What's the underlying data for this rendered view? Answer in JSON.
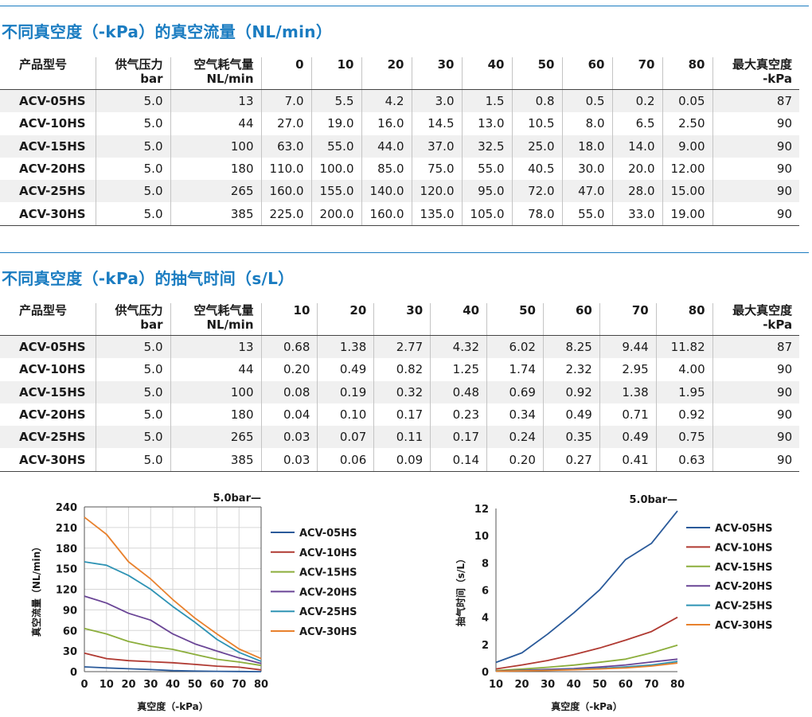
{
  "flow_section": {
    "title": "不同真空度（-kPa）的真空流量（NL/min）",
    "headers": [
      "产品型号",
      "供气压力\nbar",
      "空气耗气量\nNL/min",
      "0",
      "10",
      "20",
      "30",
      "40",
      "50",
      "60",
      "70",
      "80",
      "最大真空度\n-kPa"
    ],
    "rows": [
      [
        "ACV-05HS",
        "5.0",
        "13",
        "7.0",
        "5.5",
        "4.2",
        "3.0",
        "1.5",
        "0.8",
        "0.5",
        "0.2",
        "0.05",
        "87"
      ],
      [
        "ACV-10HS",
        "5.0",
        "44",
        "27.0",
        "19.0",
        "16.0",
        "14.5",
        "13.0",
        "10.5",
        "8.0",
        "6.5",
        "2.50",
        "90"
      ],
      [
        "ACV-15HS",
        "5.0",
        "100",
        "63.0",
        "55.0",
        "44.0",
        "37.0",
        "32.5",
        "25.0",
        "18.0",
        "14.0",
        "9.00",
        "90"
      ],
      [
        "ACV-20HS",
        "5.0",
        "180",
        "110.0",
        "100.0",
        "85.0",
        "75.0",
        "55.0",
        "40.5",
        "30.0",
        "20.0",
        "12.00",
        "90"
      ],
      [
        "ACV-25HS",
        "5.0",
        "265",
        "160.0",
        "155.0",
        "140.0",
        "120.0",
        "95.0",
        "72.0",
        "47.0",
        "28.0",
        "15.00",
        "90"
      ],
      [
        "ACV-30HS",
        "5.0",
        "385",
        "225.0",
        "200.0",
        "160.0",
        "135.0",
        "105.0",
        "78.0",
        "55.0",
        "33.0",
        "19.00",
        "90"
      ]
    ]
  },
  "time_section": {
    "title": "不同真空度（-kPa）的抽气时间（s/L）",
    "headers": [
      "产品型号",
      "供气压力\nbar",
      "空气耗气量\nNL/min",
      "10",
      "20",
      "30",
      "40",
      "50",
      "60",
      "70",
      "80",
      "最大真空度\n-kPa"
    ],
    "rows": [
      [
        "ACV-05HS",
        "5.0",
        "13",
        "0.68",
        "1.38",
        "2.77",
        "4.32",
        "6.02",
        "8.25",
        "9.44",
        "11.82",
        "87"
      ],
      [
        "ACV-10HS",
        "5.0",
        "44",
        "0.20",
        "0.49",
        "0.82",
        "1.25",
        "1.74",
        "2.32",
        "2.95",
        "4.00",
        "90"
      ],
      [
        "ACV-15HS",
        "5.0",
        "100",
        "0.08",
        "0.19",
        "0.32",
        "0.48",
        "0.69",
        "0.92",
        "1.38",
        "1.95",
        "90"
      ],
      [
        "ACV-20HS",
        "5.0",
        "180",
        "0.04",
        "0.10",
        "0.17",
        "0.23",
        "0.34",
        "0.49",
        "0.71",
        "0.92",
        "90"
      ],
      [
        "ACV-25HS",
        "5.0",
        "265",
        "0.03",
        "0.07",
        "0.11",
        "0.17",
        "0.24",
        "0.35",
        "0.49",
        "0.75",
        "90"
      ],
      [
        "ACV-30HS",
        "5.0",
        "385",
        "0.03",
        "0.06",
        "0.09",
        "0.14",
        "0.20",
        "0.27",
        "0.41",
        "0.63",
        "90"
      ]
    ]
  },
  "colors": {
    "accent": "#1a7cc1",
    "ACV-05HS": "#2a5a9a",
    "ACV-10HS": "#b03a32",
    "ACV-15HS": "#8cae3c",
    "ACV-20HS": "#6a4596",
    "ACV-25HS": "#2e93b4",
    "ACV-30HS": "#e8812d"
  },
  "chart_data": [
    {
      "type": "line",
      "title": "5.0bar—",
      "xlabel": "真空度（-kPa）",
      "ylabel": "真空流量（NL/min）",
      "x": [
        0,
        10,
        20,
        30,
        40,
        50,
        60,
        70,
        80
      ],
      "xticks": [
        "0",
        "10",
        "20",
        "30",
        "40",
        "50",
        "60",
        "70",
        "80"
      ],
      "yticks": [
        "0",
        "30",
        "60",
        "90",
        "120",
        "150",
        "180",
        "210",
        "240"
      ],
      "xlim": [
        0,
        80
      ],
      "ylim": [
        0,
        240
      ],
      "grid": true,
      "legend": "right",
      "series": [
        {
          "name": "ACV-05HS",
          "values": [
            7.0,
            5.5,
            4.2,
            3.0,
            1.5,
            0.8,
            0.5,
            0.2,
            0.05
          ]
        },
        {
          "name": "ACV-10HS",
          "values": [
            27.0,
            19.0,
            16.0,
            14.5,
            13.0,
            10.5,
            8.0,
            6.5,
            2.5
          ]
        },
        {
          "name": "ACV-15HS",
          "values": [
            63.0,
            55.0,
            44.0,
            37.0,
            32.5,
            25.0,
            18.0,
            14.0,
            9.0
          ]
        },
        {
          "name": "ACV-20HS",
          "values": [
            110.0,
            100.0,
            85.0,
            75.0,
            55.0,
            40.5,
            30.0,
            20.0,
            12.0
          ]
        },
        {
          "name": "ACV-25HS",
          "values": [
            160.0,
            155.0,
            140.0,
            120.0,
            95.0,
            72.0,
            47.0,
            28.0,
            15.0
          ]
        },
        {
          "name": "ACV-30HS",
          "values": [
            225.0,
            200.0,
            160.0,
            135.0,
            105.0,
            78.0,
            55.0,
            33.0,
            19.0
          ]
        }
      ]
    },
    {
      "type": "line",
      "title": "5.0bar—",
      "xlabel": "真空度（-kPa）",
      "ylabel": "抽气时间（s/L）",
      "x": [
        10,
        20,
        30,
        40,
        50,
        60,
        70,
        80
      ],
      "xticks": [
        "10",
        "20",
        "30",
        "40",
        "50",
        "60",
        "70",
        "80"
      ],
      "yticks": [
        "0",
        "2",
        "4",
        "6",
        "8",
        "10",
        "12"
      ],
      "xlim": [
        10,
        80
      ],
      "ylim": [
        0,
        12
      ],
      "grid": false,
      "legend": "right",
      "series": [
        {
          "name": "ACV-05HS",
          "values": [
            0.68,
            1.38,
            2.77,
            4.32,
            6.02,
            8.25,
            9.44,
            11.82
          ]
        },
        {
          "name": "ACV-10HS",
          "values": [
            0.2,
            0.49,
            0.82,
            1.25,
            1.74,
            2.32,
            2.95,
            4.0
          ]
        },
        {
          "name": "ACV-15HS",
          "values": [
            0.08,
            0.19,
            0.32,
            0.48,
            0.69,
            0.92,
            1.38,
            1.95
          ]
        },
        {
          "name": "ACV-20HS",
          "values": [
            0.04,
            0.1,
            0.17,
            0.23,
            0.34,
            0.49,
            0.71,
            0.92
          ]
        },
        {
          "name": "ACV-25HS",
          "values": [
            0.03,
            0.07,
            0.11,
            0.17,
            0.24,
            0.35,
            0.49,
            0.75
          ]
        },
        {
          "name": "ACV-30HS",
          "values": [
            0.03,
            0.06,
            0.09,
            0.14,
            0.2,
            0.27,
            0.41,
            0.63
          ]
        }
      ]
    }
  ]
}
